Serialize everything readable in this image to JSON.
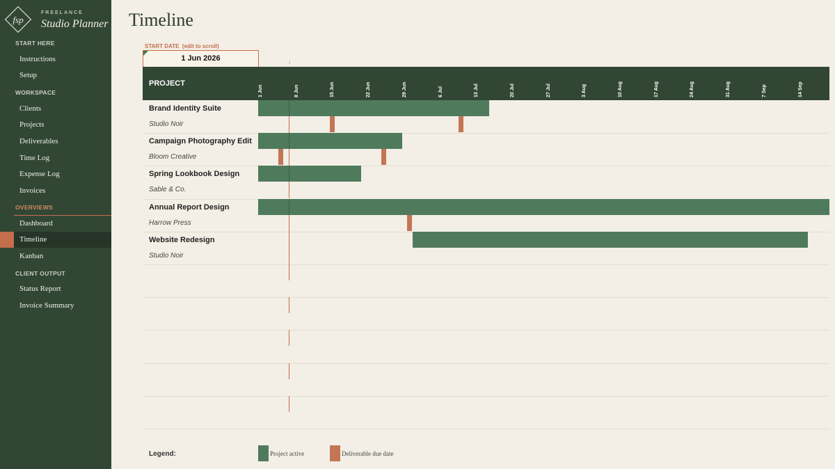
{
  "brand": {
    "logo_text": "fsp",
    "top": "FREELANCE",
    "main": "Studio Planner"
  },
  "sidebar": {
    "sections": [
      {
        "title": "START HERE",
        "items": [
          "Instructions",
          "Setup"
        ]
      },
      {
        "title": "WORKSPACE",
        "items": [
          "Clients",
          "Projects",
          "Deliverables",
          "Time Log",
          "Expense Log",
          "Invoices"
        ]
      },
      {
        "title": "OVERVIEWS",
        "items": [
          "Dashboard",
          "Timeline",
          "Kanban"
        ]
      },
      {
        "title": "CLIENT OUTPUT",
        "items": [
          "Status Report",
          "Invoice Summary"
        ]
      }
    ],
    "active_item": "Timeline"
  },
  "page": {
    "title": "Timeline",
    "start_date_label": "START DATE  (edit to scroll)",
    "start_date_value": "1 Jun 2026",
    "today_marker": "↓"
  },
  "timeline": {
    "project_header": "PROJECT",
    "weeks": [
      "1 Jun",
      "8 Jun",
      "15 Jun",
      "22 Jun",
      "29 Jun",
      "6 Jul",
      "13 Jul",
      "20 Jul",
      "27 Jul",
      "3 Aug",
      "10 Aug",
      "17 Aug",
      "24 Aug",
      "31 Aug",
      "7 Sep",
      "14 Sep"
    ],
    "today_week_fraction": 0.86,
    "projects": [
      {
        "name": "Brand Identity Suite",
        "client": "Studio Noir",
        "start_week": 0,
        "end_week": 6.43,
        "deliverables_week": [
          2.0,
          5.57
        ]
      },
      {
        "name": "Campaign Photography Edit",
        "client": "Bloom Creative",
        "start_week": 0,
        "end_week": 4.0,
        "deliverables_week": [
          0.57,
          3.43
        ]
      },
      {
        "name": "Spring Lookbook Design",
        "client": "Sable & Co.",
        "start_week": 0,
        "end_week": 2.86,
        "deliverables_week": []
      },
      {
        "name": "Annual Report Design",
        "client": "Harrow Press",
        "start_week": 0,
        "end_week": 16.0,
        "deliverables_week": [
          4.14
        ]
      },
      {
        "name": "Website Redesign",
        "client": "Studio Noir",
        "start_week": 4.29,
        "end_week": 15.29,
        "deliverables_week": []
      }
    ],
    "empty_rows": 5
  },
  "legend": {
    "label": "Legend:",
    "active": "Project active",
    "deliverable": "Deliverable due date",
    "active_color": "#4f7b5c",
    "deliverable_color": "#c47555"
  },
  "colors": {
    "sidebar": "#324634",
    "accent": "#c46e4d",
    "background": "#f3efe6"
  }
}
